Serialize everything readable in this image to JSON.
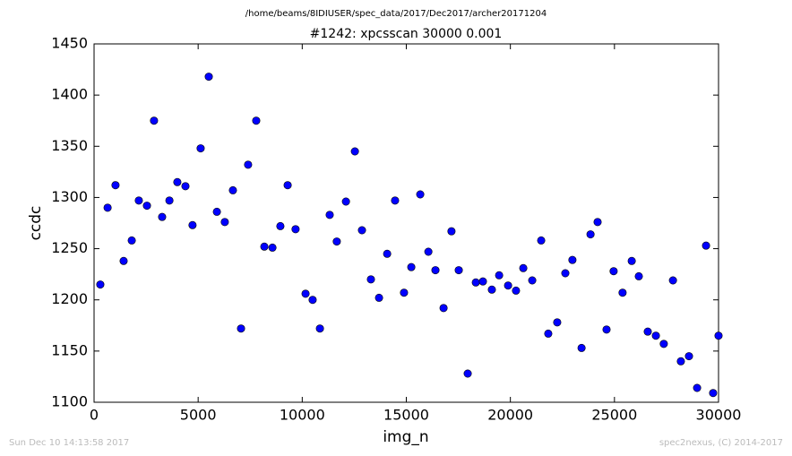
{
  "chart_data": {
    "type": "line",
    "supertitle": "/home/beams/8IDIUSER/spec_data/2017/Dec2017/archer20171204",
    "title": "#1242: xpcsscan 30000 0.001",
    "x_label": "img_n",
    "y_label": "ccdc",
    "annotations": [
      "Sun Dec 10 14:13:58 2017",
      "spec2nexus, (C) 2014-2017"
    ],
    "color": "#0000ff",
    "marker": "circle",
    "x": [
      300,
      650,
      1030,
      1420,
      1810,
      2150,
      2540,
      2880,
      3270,
      3620,
      4000,
      4390,
      4730,
      5120,
      5510,
      5900,
      6280,
      6670,
      7060,
      7400,
      7790,
      8180,
      8570,
      8950,
      9300,
      9680,
      10160,
      10500,
      10850,
      11320,
      11660,
      12100,
      12530,
      12870,
      13300,
      13690,
      14080,
      14460,
      14890,
      15240,
      15670,
      16060,
      16400,
      16790,
      17170,
      17520,
      17950,
      18340,
      18680,
      19110,
      19460,
      19890,
      20270,
      20620,
      21050,
      21480,
      21820,
      22250,
      22640,
      22980,
      23420,
      23850,
      24190,
      24620,
      24960,
      25390,
      25830,
      26170,
      26600,
      26990,
      27370,
      27810,
      28190,
      28580,
      28970,
      29400,
      29740,
      30000
    ],
    "values": [
      1215,
      1290,
      1312,
      1238,
      1258,
      1297,
      1292,
      1375,
      1281,
      1297,
      1315,
      1311,
      1273,
      1348,
      1418,
      1286,
      1276,
      1307,
      1172,
      1332,
      1375,
      1252,
      1251,
      1272,
      1312,
      1269,
      1206,
      1200,
      1172,
      1283,
      1257,
      1296,
      1345,
      1268,
      1220,
      1202,
      1245,
      1297,
      1207,
      1232,
      1303,
      1247,
      1229,
      1192,
      1267,
      1229,
      1128,
      1217,
      1218,
      1210,
      1224,
      1214,
      1209,
      1231,
      1219,
      1258,
      1167,
      1178,
      1226,
      1239,
      1153,
      1264,
      1276,
      1171,
      1228,
      1207,
      1238,
      1223,
      1169,
      1165,
      1157,
      1219,
      1140,
      1145,
      1114,
      1253,
      1109,
      1165
    ],
    "xlim": [
      0,
      30000
    ],
    "xticks": [
      0,
      5000,
      10000,
      15000,
      20000,
      25000,
      30000
    ],
    "ylim": [
      1100,
      1450
    ],
    "yticks": [
      1100,
      1150,
      1200,
      1250,
      1300,
      1350,
      1400,
      1450
    ],
    "grid": false
  }
}
